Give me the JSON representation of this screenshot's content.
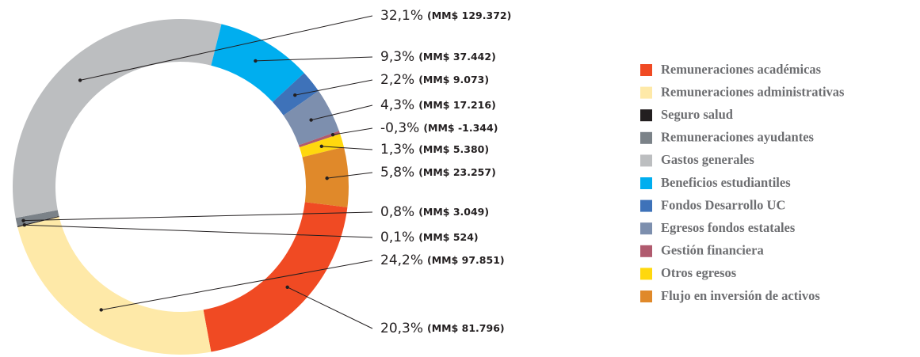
{
  "chart_data": {
    "type": "pie",
    "categories": [
      "Remuneraciones académicas",
      "Remuneraciones administrativas",
      "Seguro salud",
      "Remuneraciones ayudantes",
      "Gastos generales",
      "Beneficios estudiantiles",
      "Fondos Desarrollo UC",
      "Egresos fondos estatales",
      "Gestión financiera",
      "Otros egresos",
      "Flujo en inversión de activos"
    ],
    "values": [
      20.3,
      24.2,
      0.1,
      0.8,
      32.1,
      9.3,
      2.2,
      4.3,
      -0.3,
      1.3,
      5.8
    ],
    "value_labels": [
      "20,3%",
      "24,2%",
      "0,1%",
      "0,8%",
      "32,1%",
      "9,3%",
      "2,2%",
      "4,3%",
      "-0,3%",
      "1,3%",
      "5,8%"
    ],
    "amounts": [
      81796,
      97851,
      524,
      3049,
      129372,
      37442,
      9073,
      17216,
      -1344,
      5380,
      23257
    ],
    "amount_labels": [
      "(MM$ 81.796)",
      "(MM$ 97.851)",
      "(MM$ 524)",
      "(MM$ 3.049)",
      "(MM$ 129.372)",
      "(MM$ 37.442)",
      "(MM$ 9.073)",
      "(MM$ 17.216)",
      "(MM$ -1.344)",
      "(MM$ 5.380)",
      "(MM$ 23.257)"
    ],
    "colors": [
      "#f04a23",
      "#fee9a8",
      "#231f20",
      "#7b8288",
      "#bcbec0",
      "#00aeef",
      "#3e72b9",
      "#7d8fae",
      "#b05a6e",
      "#ffd80e",
      "#e0892a"
    ],
    "donut": true,
    "legend": "right"
  }
}
